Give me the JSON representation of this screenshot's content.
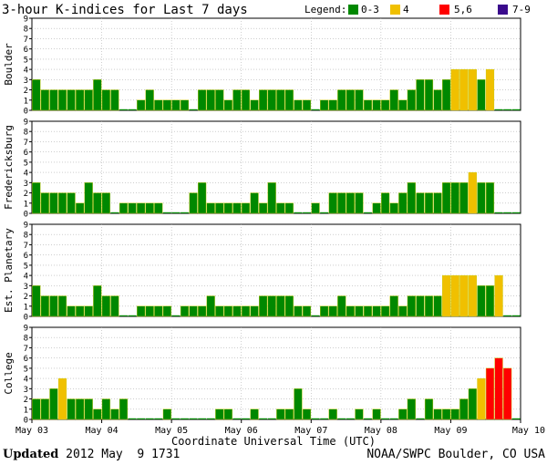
{
  "chart_data": {
    "type": "bar",
    "title": "3-hour K-indices for Last 7 days",
    "legend_title": "Legend:",
    "legend": [
      {
        "label": "0-3",
        "color": "#008800"
      },
      {
        "label": "4",
        "color": "#f0c000"
      },
      {
        "label": "5,6",
        "color": "#ff0000"
      },
      {
        "label": "7-9",
        "color": "#3a0a8c"
      }
    ],
    "xlabel": "Coordinate Universal Time (UTC)",
    "x_ticks": [
      "May 03",
      "May 04",
      "May 05",
      "May 06",
      "May 07",
      "May 08",
      "May 09",
      "May 10"
    ],
    "ylim": [
      0,
      9
    ],
    "y_ticks": [
      "0",
      "1",
      "2",
      "3",
      "4",
      "5",
      "6",
      "7",
      "8",
      "9"
    ],
    "intervals_per_day": 8,
    "days": 7,
    "panels": [
      {
        "name": "Boulder",
        "values": [
          3,
          2,
          2,
          2,
          2,
          2,
          2,
          3,
          2,
          2,
          0,
          0,
          1,
          2,
          1,
          1,
          1,
          1,
          0,
          2,
          2,
          2,
          1,
          2,
          2,
          1,
          2,
          2,
          2,
          2,
          1,
          1,
          0,
          1,
          1,
          2,
          2,
          2,
          1,
          1,
          1,
          2,
          1,
          2,
          3,
          3,
          2,
          3,
          4,
          4,
          4,
          3,
          4,
          0,
          0,
          0
        ]
      },
      {
        "name": "Fredericksburg",
        "values": [
          3,
          2,
          2,
          2,
          2,
          1,
          3,
          2,
          2,
          0,
          1,
          1,
          1,
          1,
          1,
          0,
          0,
          0,
          2,
          3,
          1,
          1,
          1,
          1,
          1,
          2,
          1,
          3,
          1,
          1,
          0,
          0,
          1,
          0,
          2,
          2,
          2,
          2,
          0,
          1,
          2,
          1,
          2,
          3,
          2,
          2,
          2,
          3,
          3,
          3,
          4,
          3,
          3,
          0,
          0,
          0
        ]
      },
      {
        "name": "Est. Planetary",
        "values": [
          3,
          2,
          2,
          2,
          1,
          1,
          1,
          3,
          2,
          2,
          0,
          0,
          1,
          1,
          1,
          1,
          0,
          1,
          1,
          1,
          2,
          1,
          1,
          1,
          1,
          1,
          2,
          2,
          2,
          2,
          1,
          1,
          0,
          1,
          1,
          2,
          1,
          1,
          1,
          1,
          1,
          2,
          1,
          2,
          2,
          2,
          2,
          4,
          4,
          4,
          4,
          3,
          3,
          4,
          0,
          0
        ]
      },
      {
        "name": "College",
        "values": [
          2,
          2,
          3,
          4,
          2,
          2,
          2,
          1,
          2,
          1,
          2,
          0,
          0,
          0,
          0,
          1,
          0,
          0,
          0,
          0,
          0,
          1,
          1,
          0,
          0,
          1,
          0,
          0,
          1,
          1,
          3,
          1,
          0,
          0,
          1,
          0,
          0,
          1,
          0,
          1,
          0,
          0,
          1,
          2,
          0,
          2,
          1,
          1,
          1,
          2,
          3,
          4,
          5,
          6,
          5,
          0
        ]
      }
    ]
  },
  "footer": {
    "updated_label": "Updated",
    "updated_value": " 2012 May  9 1731",
    "credit": "NOAA/SWPC Boulder, CO USA"
  }
}
